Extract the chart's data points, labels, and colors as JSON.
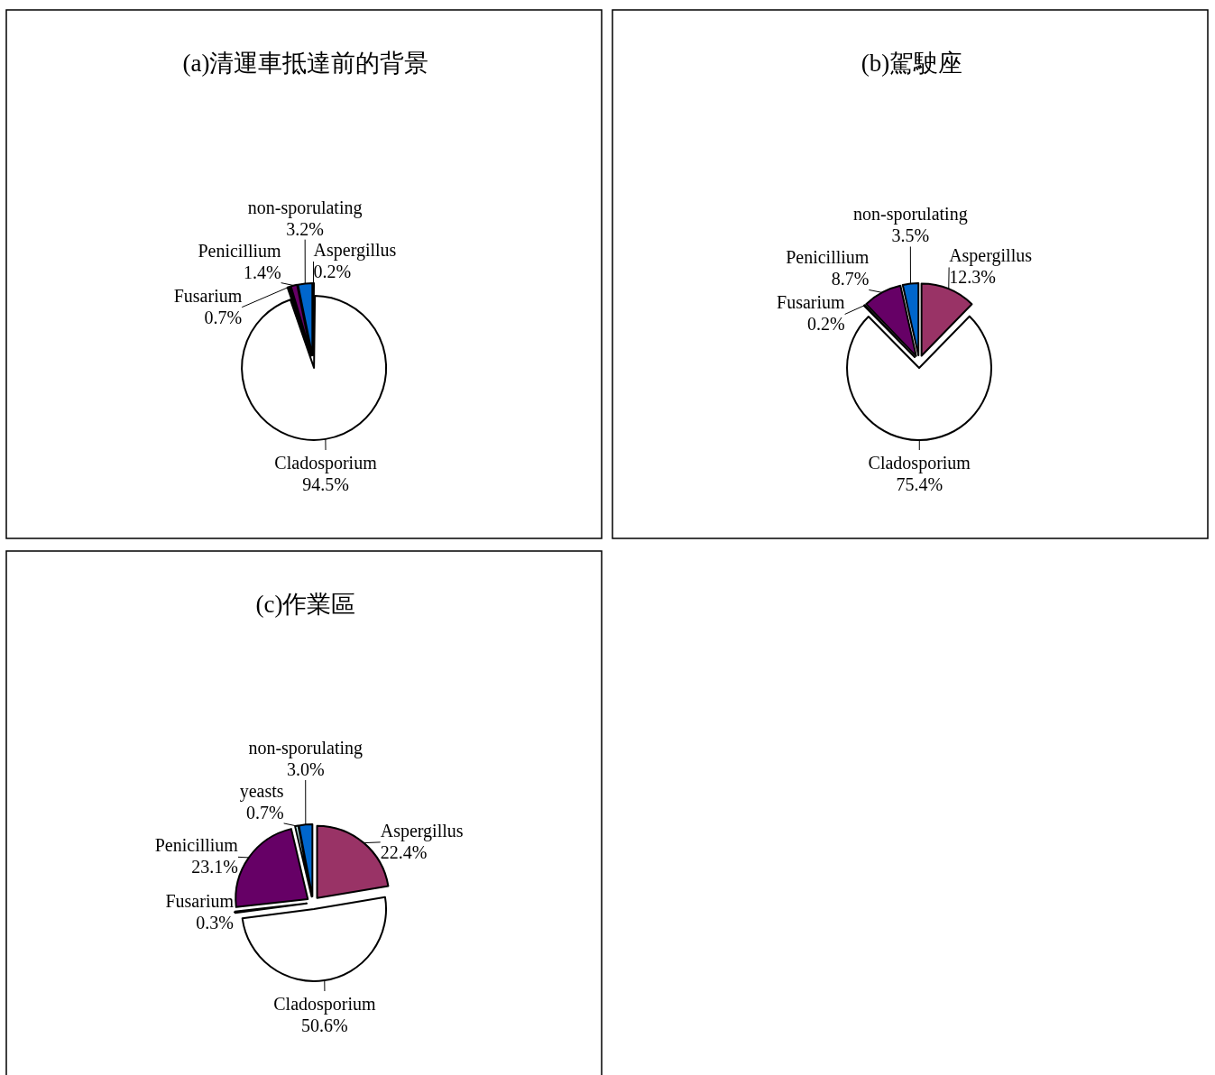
{
  "chart_data": [
    {
      "type": "pie",
      "title": "(a)清運車抵達前的背景",
      "categories": [
        "Aspergillus",
        "Cladosporium",
        "Fusarium",
        "Penicillium",
        "non-sporulating"
      ],
      "values": [
        0.2,
        94.5,
        0.7,
        1.4,
        3.2
      ],
      "value_labels": [
        "0.2%",
        "94.5%",
        "0.7%",
        "1.4%",
        "3.2%"
      ],
      "colors": [
        "#993366",
        "#ffffff",
        "#000000",
        "#660066",
        "#0066cc"
      ]
    },
    {
      "type": "pie",
      "title": "(b)駕駛座",
      "categories": [
        "Aspergillus",
        "Cladosporium",
        "Fusarium",
        "Penicillium",
        "non-sporulating"
      ],
      "values": [
        12.3,
        75.4,
        0.2,
        8.7,
        3.5
      ],
      "value_labels": [
        "12.3%",
        "75.4%",
        "0.2%",
        "8.7%",
        "3.5%"
      ],
      "colors": [
        "#993366",
        "#ffffff",
        "#000000",
        "#660066",
        "#0066cc"
      ]
    },
    {
      "type": "pie",
      "title": "(c)作業區",
      "categories": [
        "Aspergillus",
        "Cladosporium",
        "Fusarium",
        "Penicillium",
        "yeasts",
        "non-sporulating"
      ],
      "values": [
        22.4,
        50.6,
        0.3,
        23.1,
        0.7,
        3.0
      ],
      "value_labels": [
        "22.4%",
        "50.6%",
        "0.3%",
        "23.1%",
        "0.7%",
        "3.0%"
      ],
      "colors": [
        "#993366",
        "#ffffff",
        "#000000",
        "#660066",
        "#ccffff",
        "#0066cc"
      ]
    }
  ]
}
